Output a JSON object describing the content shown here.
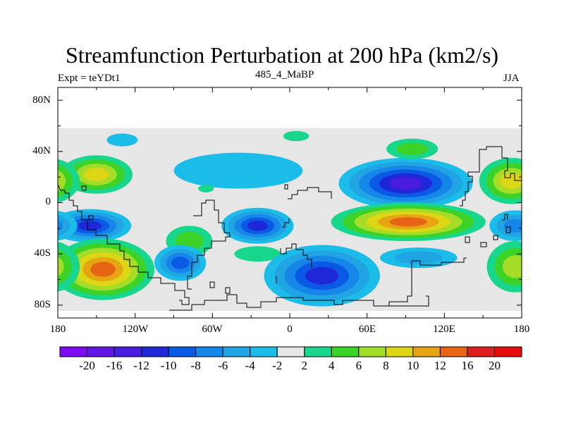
{
  "header": {
    "title": "Streamfunction Perturbation at 200 hPa (km2/s)",
    "left_label": "Expt = teYDt1",
    "center_label": "485_4_MaBP",
    "right_label": "JJA"
  },
  "axes": {
    "lat_ticks": [
      "80N",
      "40N",
      "0",
      "40S",
      "80S"
    ],
    "lon_ticks": [
      "180",
      "120W",
      "60W",
      "0",
      "60E",
      "120E",
      "180"
    ]
  },
  "colorbar": {
    "labels": [
      "-20",
      "-16",
      "-12",
      "-10",
      "-8",
      "-6",
      "-4",
      "-2",
      "2",
      "4",
      "6",
      "8",
      "10",
      "12",
      "16",
      "20"
    ],
    "colors": [
      "#7a0af0",
      "#6415e8",
      "#4a1ce0",
      "#1e28d8",
      "#0a5ae6",
      "#1686e8",
      "#20a4e4",
      "#1cbce8",
      "#e6e6e6",
      "#18d68c",
      "#3cd228",
      "#a4dc28",
      "#dcd614",
      "#e6a614",
      "#e66414",
      "#dc1e1e",
      "#e60c0c"
    ]
  },
  "legend_levels": {
    "neg": [
      "#1cbce8",
      "#20a4e4",
      "#1686e8",
      "#0a5ae6",
      "#1e28d8",
      "#4a1ce0",
      "#6415e8"
    ],
    "pos": [
      "#18d68c",
      "#3cd228",
      "#a4dc28",
      "#dcd614",
      "#e6a614",
      "#e66414",
      "#dc1e1e"
    ]
  },
  "map_features": {
    "blobs": [
      {
        "name": "anomaly-north-pacific",
        "lon": -150,
        "lat": 22,
        "rx": 28,
        "ry": 15,
        "levels": 4,
        "sign": "pos"
      },
      {
        "name": "anomaly-south-pacific-low",
        "lon": -155,
        "lat": -18,
        "rx": 32,
        "ry": 13,
        "levels": 5,
        "sign": "neg"
      },
      {
        "name": "anomaly-south-pacific-high",
        "lon": -145,
        "lat": -52,
        "rx": 40,
        "ry": 24,
        "levels": 6,
        "sign": "pos"
      },
      {
        "name": "anomaly-south-america",
        "lon": -78,
        "lat": -30,
        "rx": 18,
        "ry": 12,
        "levels": 2,
        "sign": "pos"
      },
      {
        "name": "anomaly-south-atlantic-low",
        "lon": -85,
        "lat": -47,
        "rx": 20,
        "ry": 14,
        "levels": 4,
        "sign": "neg"
      },
      {
        "name": "anomaly-atlantic-low",
        "lon": -25,
        "lat": -18,
        "rx": 28,
        "ry": 14,
        "levels": 5,
        "sign": "neg"
      },
      {
        "name": "anomaly-tropical-atlantic",
        "lon": -40,
        "lat": 25,
        "rx": 50,
        "ry": 14,
        "levels": 1,
        "sign": "neg"
      },
      {
        "name": "anomaly-atlantic-wave",
        "lon": -25,
        "lat": -40,
        "rx": 18,
        "ry": 6,
        "levels": 1,
        "sign": "pos"
      },
      {
        "name": "anomaly-south-africa-low",
        "lon": 25,
        "lat": -57,
        "rx": 45,
        "ry": 24,
        "levels": 5,
        "sign": "neg"
      },
      {
        "name": "anomaly-asian-low",
        "lon": 90,
        "lat": 15,
        "rx": 52,
        "ry": 20,
        "levels": 6,
        "sign": "neg"
      },
      {
        "name": "anomaly-indian-ocean-high",
        "lon": 92,
        "lat": -15,
        "rx": 60,
        "ry": 15,
        "levels": 6,
        "sign": "pos"
      },
      {
        "name": "anomaly-mid-latitude-asia",
        "lon": 95,
        "lat": 42,
        "rx": 20,
        "ry": 8,
        "levels": 2,
        "sign": "pos"
      },
      {
        "name": "anomaly-south-indian-low",
        "lon": 100,
        "lat": -43,
        "rx": 30,
        "ry": 8,
        "levels": 2,
        "sign": "neg"
      },
      {
        "name": "anomaly-north-atlantic",
        "lon": 5,
        "lat": 52,
        "rx": 10,
        "ry": 4,
        "levels": 1,
        "sign": "pos"
      },
      {
        "name": "anomaly-pacific-small",
        "lon": -130,
        "lat": 49,
        "rx": 12,
        "ry": 5,
        "levels": 1,
        "sign": "neg"
      },
      {
        "name": "anomaly-gulf-small",
        "lon": -65,
        "lat": 11,
        "rx": 6,
        "ry": 3,
        "levels": 1,
        "sign": "pos"
      },
      {
        "name": "anomaly-west-pacific-high",
        "lon": 172,
        "lat": 17,
        "rx": 25,
        "ry": 18,
        "levels": 4,
        "sign": "pos"
      },
      {
        "name": "anomaly-west-pacific-low",
        "lon": 175,
        "lat": -18,
        "rx": 20,
        "ry": 12,
        "levels": 3,
        "sign": "neg"
      },
      {
        "name": "anomaly-southwest-pacific-high",
        "lon": 175,
        "lat": -50,
        "rx": 22,
        "ry": 20,
        "levels": 3,
        "sign": "pos"
      }
    ]
  }
}
